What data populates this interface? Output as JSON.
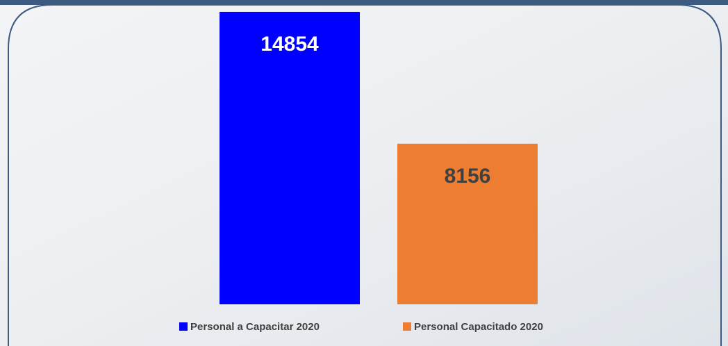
{
  "chart_data": {
    "type": "bar",
    "series": [
      {
        "name": "Personal a Capacitar 2020",
        "color": "#0000ff",
        "values": [
          14854
        ],
        "label_color": "#ffffff"
      },
      {
        "name": "Personal Capacitado 2020",
        "color": "#ed7d31",
        "values": [
          8156
        ],
        "label_color": "#404040"
      }
    ]
  }
}
